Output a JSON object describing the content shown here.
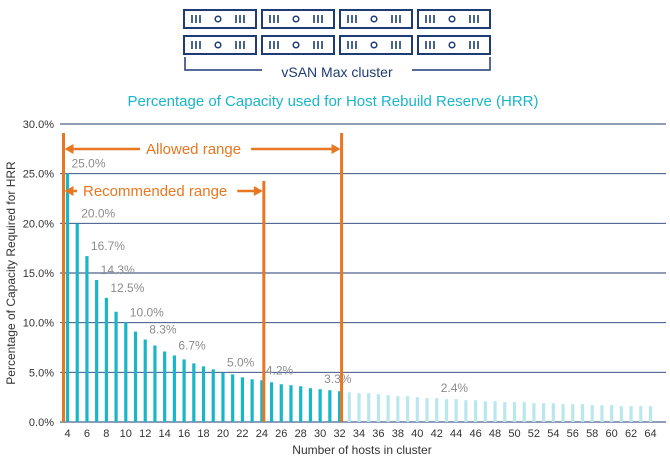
{
  "diagram": {
    "cluster_label": "vSAN Max cluster",
    "host_rows": 2,
    "hosts_per_row": 4,
    "icon": "server-rack-icon",
    "color": "#1f3b73"
  },
  "chart_data": {
    "type": "bar",
    "title": "Percentage of Capacity used for Host Rebuild Reserve (HRR)",
    "xlabel": "Number of hosts in cluster",
    "ylabel": "Percentage of Capacity Required for HRR",
    "ylim": [
      0,
      30
    ],
    "y_ticks": [
      "0.0%",
      "5.0%",
      "10.0%",
      "15.0%",
      "20.0%",
      "25.0%",
      "30.0%"
    ],
    "x_ticks": [
      "4",
      "6",
      "8",
      "10",
      "12",
      "14",
      "16",
      "18",
      "20",
      "22",
      "24",
      "26",
      "28",
      "30",
      "32",
      "34",
      "36",
      "38",
      "40",
      "42",
      "44",
      "46",
      "48",
      "50",
      "52",
      "54",
      "56",
      "58",
      "60",
      "62",
      "64"
    ],
    "grid": true,
    "categories": [
      4,
      5,
      6,
      7,
      8,
      9,
      10,
      11,
      12,
      13,
      14,
      15,
      16,
      17,
      18,
      19,
      20,
      21,
      22,
      23,
      24,
      25,
      26,
      27,
      28,
      29,
      30,
      31,
      32,
      33,
      34,
      35,
      36,
      37,
      38,
      39,
      40,
      41,
      42,
      43,
      44,
      45,
      46,
      47,
      48,
      49,
      50,
      51,
      52,
      53,
      54,
      55,
      56,
      57,
      58,
      59,
      60,
      61,
      62,
      63,
      64
    ],
    "values": [
      25.0,
      20.0,
      16.7,
      14.3,
      12.5,
      11.1,
      10.0,
      9.1,
      8.3,
      7.7,
      7.1,
      6.7,
      6.3,
      5.9,
      5.6,
      5.3,
      5.0,
      4.8,
      4.5,
      4.3,
      4.2,
      4.0,
      3.8,
      3.7,
      3.6,
      3.4,
      3.3,
      3.2,
      3.1,
      3.0,
      2.9,
      2.9,
      2.8,
      2.7,
      2.6,
      2.6,
      2.5,
      2.4,
      2.4,
      2.3,
      2.3,
      2.2,
      2.2,
      2.1,
      2.1,
      2.0,
      2.0,
      2.0,
      1.9,
      1.9,
      1.9,
      1.8,
      1.8,
      1.8,
      1.7,
      1.7,
      1.7,
      1.6,
      1.6,
      1.6,
      1.6
    ],
    "data_labels": [
      {
        "host": 4,
        "text": "25.0%"
      },
      {
        "host": 5,
        "text": "20.0%"
      },
      {
        "host": 6,
        "text": "16.7%"
      },
      {
        "host": 7,
        "text": "14.3%"
      },
      {
        "host": 8,
        "text": "12.5%"
      },
      {
        "host": 10,
        "text": "10.0%"
      },
      {
        "host": 12,
        "text": "8.3%"
      },
      {
        "host": 15,
        "text": "6.7%"
      },
      {
        "host": 20,
        "text": "5.0%"
      },
      {
        "host": 24,
        "text": "4.2%"
      },
      {
        "host": 30,
        "text": "3.3%"
      },
      {
        "host": 42,
        "text": "2.4%"
      }
    ],
    "colors": {
      "allowed": "#19b6c8",
      "outside": "#b9e7ee",
      "range": "#e87722",
      "grid": "#1f3b73",
      "label": "#8c8c8c"
    },
    "ranges": [
      {
        "name": "Allowed range",
        "from": 4,
        "to": 32
      },
      {
        "name": "Recommended range",
        "from": 4,
        "to": 24
      }
    ]
  }
}
